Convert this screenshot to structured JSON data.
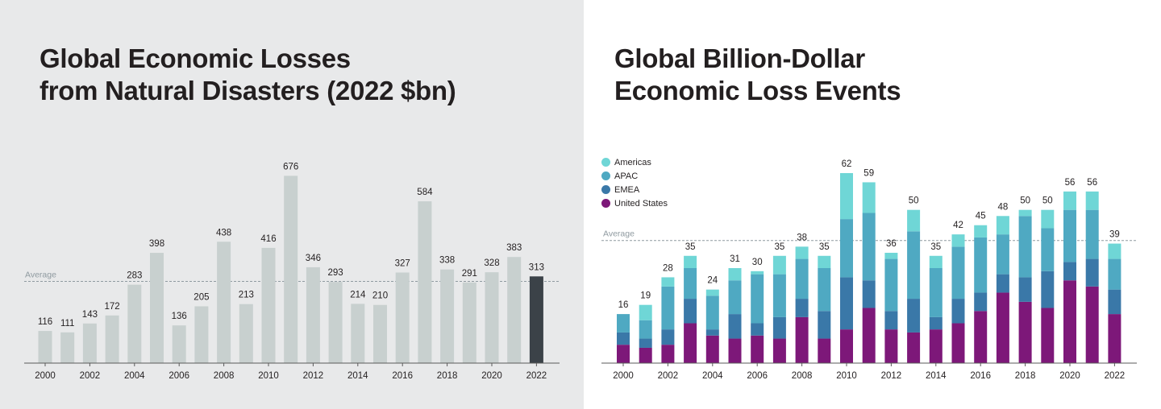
{
  "colors": {
    "left_bar": "#c8d0cf",
    "left_highlight": "#3b4248",
    "americas": "#6fd6d6",
    "apac": "#4fa9c2",
    "emea": "#3a78a8",
    "united_states": "#7d1879",
    "average_line": "#8f9aa0",
    "axis": "#5a5a5a",
    "text": "#231f20"
  },
  "left": {
    "title_line1": "Global Economic Losses",
    "title_line2": "from Natural Disasters (2022 $bn)"
  },
  "right": {
    "title_line1": "Global Billion-Dollar",
    "title_line2": "Economic Loss Events"
  },
  "chart_data": [
    {
      "type": "bar",
      "title": "Global Economic Losses from Natural Disasters (2022 $bn)",
      "categories": [
        "2000",
        "2001",
        "2002",
        "2003",
        "2004",
        "2005",
        "2006",
        "2007",
        "2008",
        "2009",
        "2010",
        "2011",
        "2012",
        "2013",
        "2014",
        "2015",
        "2016",
        "2017",
        "2018",
        "2019",
        "2020",
        "2021",
        "2022"
      ],
      "x_tick_labels": [
        "2000",
        "2002",
        "2004",
        "2006",
        "2008",
        "2010",
        "2012",
        "2014",
        "2016",
        "2018",
        "2020",
        "2022"
      ],
      "values": [
        116,
        111,
        143,
        172,
        283,
        398,
        136,
        205,
        438,
        213,
        416,
        676,
        346,
        293,
        214,
        210,
        327,
        584,
        338,
        291,
        328,
        383,
        313
      ],
      "data_labels": [
        "116",
        "111",
        "143",
        "172",
        "283",
        "398",
        "136",
        "205",
        "438",
        "213",
        "416",
        "676",
        "346",
        "293",
        "214",
        "210",
        "327",
        "584",
        "338",
        "291",
        "328",
        "383",
        "313"
      ],
      "highlight": "2022",
      "reference_line": {
        "label": "Average",
        "value": 295
      },
      "ylim": [
        0,
        680
      ],
      "grid": false,
      "xlabel": "",
      "ylabel": ""
    },
    {
      "type": "bar",
      "stacked": true,
      "title": "Global Billion-Dollar Economic Loss Events",
      "categories": [
        "2000",
        "2001",
        "2002",
        "2003",
        "2004",
        "2005",
        "2006",
        "2007",
        "2008",
        "2009",
        "2010",
        "2011",
        "2012",
        "2013",
        "2014",
        "2015",
        "2016",
        "2017",
        "2018",
        "2019",
        "2020",
        "2021",
        "2022"
      ],
      "x_tick_labels": [
        "2000",
        "2002",
        "2004",
        "2006",
        "2008",
        "2010",
        "2012",
        "2014",
        "2016",
        "2018",
        "2020",
        "2022"
      ],
      "legend": [
        "Americas",
        "APAC",
        "EMEA",
        "United States"
      ],
      "legend_position": "top-left",
      "series": [
        {
          "name": "United States",
          "values": [
            6,
            5,
            6,
            13,
            9,
            8,
            9,
            8,
            15,
            8,
            11,
            18,
            11,
            10,
            11,
            13,
            17,
            23,
            20,
            18,
            27,
            25,
            16
          ]
        },
        {
          "name": "EMEA",
          "values": [
            4,
            3,
            5,
            8,
            2,
            8,
            4,
            7,
            6,
            9,
            17,
            9,
            6,
            11,
            4,
            8,
            6,
            6,
            8,
            12,
            6,
            9,
            8
          ]
        },
        {
          "name": "APAC",
          "values": [
            6,
            6,
            14,
            10,
            11,
            11,
            16,
            14,
            13,
            14,
            19,
            22,
            17,
            22,
            16,
            17,
            18,
            13,
            20,
            14,
            17,
            16,
            10
          ]
        },
        {
          "name": "Americas",
          "values": [
            0,
            5,
            3,
            4,
            2,
            4,
            1,
            6,
            4,
            4,
            15,
            10,
            2,
            7,
            4,
            4,
            4,
            6,
            2,
            6,
            6,
            6,
            5
          ]
        }
      ],
      "totals": [
        "16",
        "19",
        "28",
        "35",
        "24",
        "31",
        "30",
        "35",
        "38",
        "35",
        "62",
        "59",
        "36",
        "50",
        "35",
        "42",
        "45",
        "48",
        "50",
        "50",
        "56",
        "56",
        "39"
      ],
      "reference_line": {
        "label": "Average",
        "value": 40
      },
      "ylim": [
        0,
        63
      ],
      "grid": false,
      "xlabel": "",
      "ylabel": ""
    }
  ]
}
